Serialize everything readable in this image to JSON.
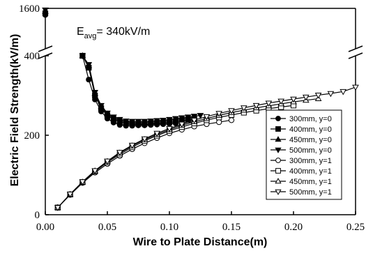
{
  "chart_data": {
    "type": "line",
    "xlabel": "Wire to Plate Distance(m)",
    "ylabel": "Electric Field Strength(kV/m)",
    "xlim": [
      0.0,
      0.25
    ],
    "ylim": [
      0,
      400
    ],
    "ylim_upper_break": [
      400,
      1600
    ],
    "broken_y_axis": true,
    "x_ticks": [
      "0.00",
      "0.05",
      "0.10",
      "0.15",
      "0.20",
      "0.25"
    ],
    "y_ticks": [
      "0",
      "200",
      "400"
    ],
    "y_ticks_upper": [
      "1600"
    ],
    "legend_position": "right",
    "annotation": {
      "prefix": "E",
      "subscript": "avg",
      "text": "=  340kV/m",
      "marker_x": 0.0,
      "marker_values": [
        1560,
        1520,
        1470,
        1430
      ]
    },
    "series": [
      {
        "name": "300mm, y=0",
        "marker": "filled-circle",
        "x": [
          0.03,
          0.035,
          0.04,
          0.045,
          0.05,
          0.055,
          0.06,
          0.065,
          0.07,
          0.075,
          0.08,
          0.085,
          0.09,
          0.095,
          0.1,
          0.105,
          0.11
        ],
        "y": [
          400,
          340,
          290,
          260,
          242,
          232,
          226,
          224,
          224,
          225,
          225,
          226,
          227,
          228,
          229,
          230,
          231
        ]
      },
      {
        "name": "400mm, y=0",
        "marker": "filled-square",
        "x": [
          0.03,
          0.035,
          0.04,
          0.045,
          0.05,
          0.055,
          0.06,
          0.065,
          0.07,
          0.075,
          0.08,
          0.085,
          0.09,
          0.095,
          0.1,
          0.105,
          0.11,
          0.115,
          0.12
        ],
        "y": [
          400,
          370,
          300,
          268,
          250,
          240,
          234,
          230,
          229,
          229,
          229,
          230,
          231,
          232,
          233,
          235,
          237,
          239,
          241
        ]
      },
      {
        "name": "450mm, y=0",
        "marker": "filled-triangle-up",
        "x": [
          0.03,
          0.035,
          0.04,
          0.045,
          0.05,
          0.055,
          0.06,
          0.065,
          0.07,
          0.075,
          0.08,
          0.085,
          0.09,
          0.095,
          0.1,
          0.105,
          0.11,
          0.115,
          0.12
        ],
        "y": [
          400,
          375,
          305,
          272,
          253,
          243,
          237,
          233,
          232,
          232,
          232,
          233,
          234,
          235,
          237,
          239,
          241,
          243,
          245
        ]
      },
      {
        "name": "500mm, y=0",
        "marker": "filled-triangle-down",
        "x": [
          0.03,
          0.035,
          0.04,
          0.045,
          0.05,
          0.055,
          0.06,
          0.065,
          0.07,
          0.075,
          0.08,
          0.085,
          0.09,
          0.095,
          0.1,
          0.105,
          0.11,
          0.115,
          0.12,
          0.125
        ],
        "y": [
          400,
          378,
          308,
          275,
          256,
          246,
          240,
          236,
          235,
          235,
          235,
          236,
          237,
          238,
          240,
          242,
          244,
          246,
          248,
          250
        ]
      },
      {
        "name": "300mm, y=1",
        "marker": "open-circle",
        "x": [
          0.01,
          0.02,
          0.03,
          0.04,
          0.05,
          0.06,
          0.07,
          0.08,
          0.09,
          0.1,
          0.11,
          0.12,
          0.13,
          0.14,
          0.15
        ],
        "y": [
          18,
          50,
          80,
          106,
          128,
          148,
          165,
          180,
          193,
          205,
          214,
          222,
          228,
          233,
          238
        ]
      },
      {
        "name": "400mm, y=1",
        "marker": "open-square",
        "x": [
          0.01,
          0.02,
          0.03,
          0.04,
          0.05,
          0.06,
          0.07,
          0.08,
          0.09,
          0.1,
          0.11,
          0.12,
          0.13,
          0.14,
          0.15,
          0.16,
          0.17,
          0.18,
          0.19,
          0.2
        ],
        "y": [
          18,
          51,
          82,
          109,
          132,
          152,
          170,
          186,
          199,
          211,
          221,
          230,
          238,
          245,
          251,
          257,
          262,
          267,
          271,
          275
        ]
      },
      {
        "name": "450mm, y=1",
        "marker": "open-triangle-up",
        "x": [
          0.01,
          0.02,
          0.03,
          0.04,
          0.05,
          0.06,
          0.07,
          0.08,
          0.09,
          0.1,
          0.11,
          0.12,
          0.13,
          0.14,
          0.15,
          0.16,
          0.17,
          0.18,
          0.19,
          0.2,
          0.21,
          0.22
        ],
        "y": [
          18,
          51,
          82,
          110,
          134,
          155,
          173,
          189,
          202,
          214,
          225,
          234,
          242,
          250,
          257,
          263,
          269,
          274,
          279,
          284,
          288,
          292
        ]
      },
      {
        "name": "500mm, y=1",
        "marker": "open-triangle-down",
        "x": [
          0.01,
          0.02,
          0.03,
          0.04,
          0.05,
          0.06,
          0.07,
          0.08,
          0.09,
          0.1,
          0.11,
          0.12,
          0.13,
          0.14,
          0.15,
          0.16,
          0.17,
          0.18,
          0.19,
          0.2,
          0.21,
          0.22,
          0.23,
          0.24,
          0.25
        ],
        "y": [
          18,
          52,
          83,
          111,
          135,
          157,
          175,
          191,
          205,
          217,
          228,
          238,
          247,
          255,
          262,
          269,
          275,
          281,
          286,
          291,
          296,
          301,
          305,
          310,
          321
        ]
      }
    ]
  }
}
